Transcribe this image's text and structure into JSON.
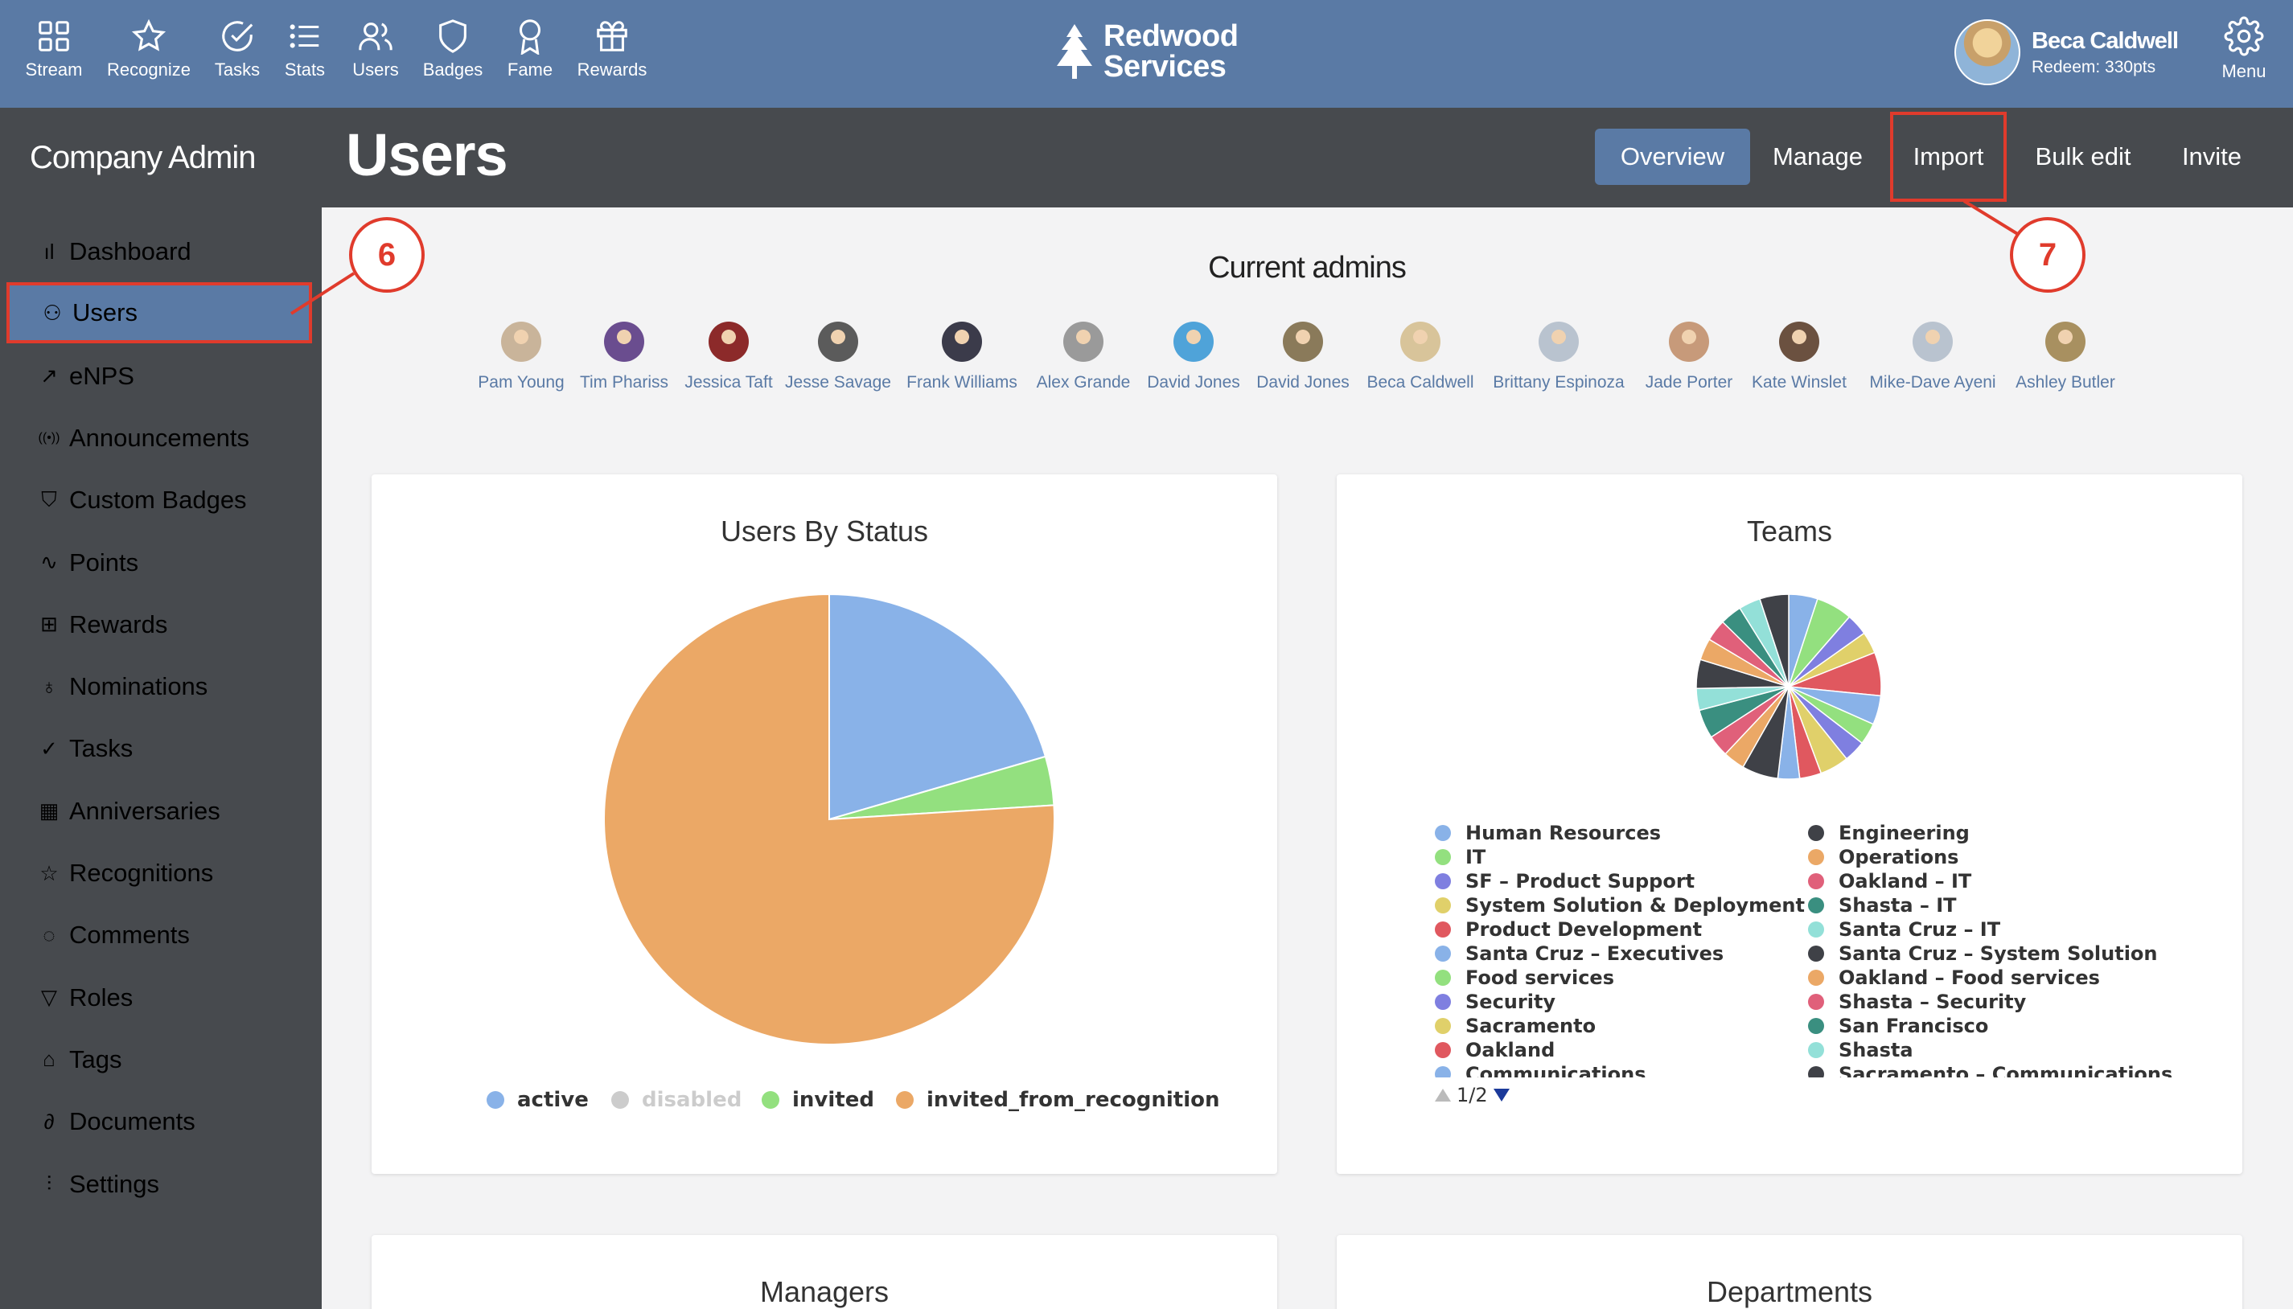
{
  "topnav": {
    "items": [
      {
        "label": "Stream",
        "icon": "grid-icon"
      },
      {
        "label": "Recognize",
        "icon": "star-icon"
      },
      {
        "label": "Tasks",
        "icon": "check-circle-icon"
      },
      {
        "label": "Stats",
        "icon": "list-icon"
      },
      {
        "label": "Users",
        "icon": "users-icon"
      },
      {
        "label": "Badges",
        "icon": "shield-icon"
      },
      {
        "label": "Fame",
        "icon": "award-icon"
      },
      {
        "label": "Rewards",
        "icon": "gift-icon"
      }
    ],
    "brand_line1": "Redwood",
    "brand_line2": "Services",
    "user_name": "Beca Caldwell",
    "user_points": "Redeem: 330pts",
    "menu_label": "Menu"
  },
  "sidebar": {
    "title": "Company Admin",
    "items": [
      {
        "label": "Dashboard",
        "icon": "bar-chart-icon",
        "glyph": "ıl"
      },
      {
        "label": "Users",
        "icon": "user-icon",
        "glyph": "⚇"
      },
      {
        "label": "eNPS",
        "icon": "trend-icon",
        "glyph": "↗"
      },
      {
        "label": "Announcements",
        "icon": "broadcast-icon",
        "glyph": "((•))"
      },
      {
        "label": "Custom Badges",
        "icon": "shield-icon",
        "glyph": "⛉"
      },
      {
        "label": "Points",
        "icon": "pulse-icon",
        "glyph": "∿"
      },
      {
        "label": "Rewards",
        "icon": "gift-icon",
        "glyph": "⊞"
      },
      {
        "label": "Nominations",
        "icon": "award-icon",
        "glyph": "♁"
      },
      {
        "label": "Tasks",
        "icon": "check-circle-icon",
        "glyph": "✓"
      },
      {
        "label": "Anniversaries",
        "icon": "calendar-icon",
        "glyph": "▦"
      },
      {
        "label": "Recognitions",
        "icon": "star-icon",
        "glyph": "☆"
      },
      {
        "label": "Comments",
        "icon": "comment-icon",
        "glyph": "◌"
      },
      {
        "label": "Roles",
        "icon": "filter-icon",
        "glyph": "▽"
      },
      {
        "label": "Tags",
        "icon": "tag-icon",
        "glyph": "⌂"
      },
      {
        "label": "Documents",
        "icon": "paperclip-icon",
        "glyph": "∂"
      },
      {
        "label": "Settings",
        "icon": "sliders-icon",
        "glyph": "⫶"
      }
    ]
  },
  "header": {
    "title": "Users",
    "tabs": [
      "Overview",
      "Manage",
      "Import",
      "Bulk edit",
      "Invite"
    ]
  },
  "callouts": {
    "first": "6",
    "second": "7"
  },
  "admins": {
    "title": "Current admins",
    "people": [
      {
        "name": "Pam Young",
        "color": "#c9b49a"
      },
      {
        "name": "Tim Phariss",
        "color": "#6a4d8f"
      },
      {
        "name": "Jessica Taft",
        "color": "#8c2a2a"
      },
      {
        "name": "Jesse Savage",
        "color": "#5b5b5b"
      },
      {
        "name": "Frank Williams",
        "color": "#3b3b4a"
      },
      {
        "name": "Alex Grande",
        "color": "#9a9a9a"
      },
      {
        "name": "David Jones",
        "color": "#4fa3d9"
      },
      {
        "name": "David Jones",
        "color": "#8a7a5a"
      },
      {
        "name": "Beca Caldwell",
        "color": "#d8c49a"
      },
      {
        "name": "Brittany Espinoza",
        "color": "#b9c3cf"
      },
      {
        "name": "Jade Porter",
        "color": "#c79a7a"
      },
      {
        "name": "Kate Winslet",
        "color": "#6b5140"
      },
      {
        "name": "Mike-Dave Ayeni",
        "color": "#b9c3cf"
      },
      {
        "name": "Ashley Butler",
        "color": "#a89060"
      }
    ]
  },
  "cards": {
    "status_title": "Users By Status",
    "teams_title": "Teams",
    "managers_title": "Managers",
    "departments_title": "Departments"
  },
  "chart_data": [
    {
      "type": "pie",
      "title": "Users By Status",
      "series": [
        {
          "name": "active",
          "value": 20.5,
          "color": "#89b2e8"
        },
        {
          "name": "disabled",
          "value": 0,
          "color": "#cccccc"
        },
        {
          "name": "invited",
          "value": 3.5,
          "color": "#93e07f"
        },
        {
          "name": "invited_from_recognition",
          "value": 76,
          "color": "#eba866"
        }
      ]
    },
    {
      "type": "pie",
      "title": "Teams",
      "series": [
        {
          "name": "Human Resources",
          "value": 4,
          "color": "#89b2e8"
        },
        {
          "name": "IT",
          "value": 5,
          "color": "#93e07f"
        },
        {
          "name": "SF - Product Support",
          "value": 3,
          "color": "#7f7fe0"
        },
        {
          "name": "System Solution & Deployment",
          "value": 3,
          "color": "#e0d06a"
        },
        {
          "name": "Product Development",
          "value": 6,
          "color": "#e0585f"
        },
        {
          "name": "Santa Cruz - Executives",
          "value": 4,
          "color": "#89b2e8"
        },
        {
          "name": "Food services",
          "value": 3,
          "color": "#93e07f"
        },
        {
          "name": "Security",
          "value": 3,
          "color": "#7f7fe0"
        },
        {
          "name": "Sacramento",
          "value": 4,
          "color": "#e0d06a"
        },
        {
          "name": "Oakland",
          "value": 3,
          "color": "#e0585f"
        },
        {
          "name": "Communications",
          "value": 3,
          "color": "#89b2e8"
        },
        {
          "name": "Engineering",
          "value": 5,
          "color": "#3f4147"
        },
        {
          "name": "Operations",
          "value": 3,
          "color": "#eba866"
        },
        {
          "name": "Oakland - IT",
          "value": 3,
          "color": "#e0607a"
        },
        {
          "name": "Shasta - IT",
          "value": 4,
          "color": "#3a8f80"
        },
        {
          "name": "Santa Cruz - IT",
          "value": 3,
          "color": "#93e0d8"
        },
        {
          "name": "Santa Cruz - System Solution",
          "value": 4,
          "color": "#3f4147"
        },
        {
          "name": "Oakland - Food services",
          "value": 3,
          "color": "#eba866"
        },
        {
          "name": "Shasta - Security",
          "value": 3,
          "color": "#e0607a"
        },
        {
          "name": "San Francisco",
          "value": 3,
          "color": "#3a8f80"
        },
        {
          "name": "Shasta",
          "value": 3,
          "color": "#93e0d8"
        },
        {
          "name": "Sacramento - Communications",
          "value": 4,
          "color": "#3f4147"
        }
      ],
      "legend_page": "1/2",
      "legend_visible_left": [
        "Human Resources",
        "IT",
        "SF – Product Support",
        "System Solution & Deployment",
        "Product Development",
        "Santa Cruz – Executives",
        "Food services",
        "Security",
        "Sacramento",
        "Oakland",
        "Communications"
      ],
      "legend_visible_right": [
        "Engineering",
        "Operations",
        "Oakland – IT",
        "Shasta – IT",
        "Santa Cruz – IT",
        "Santa Cruz – System Solution",
        "Oakland – Food services",
        "Shasta – Security",
        "San Francisco",
        "Shasta",
        "Sacramento – Communications"
      ]
    }
  ]
}
